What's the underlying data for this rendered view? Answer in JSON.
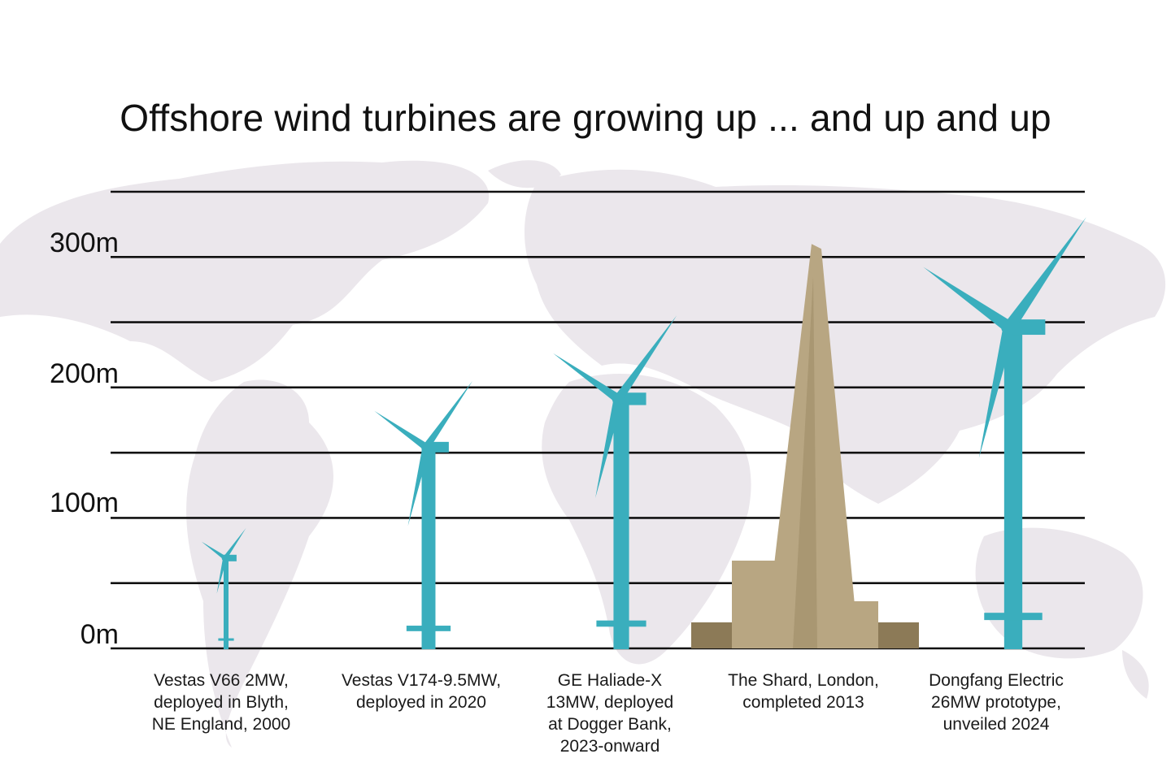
{
  "colors": {
    "turbine": "#3aaebd",
    "shard": "#b8a682",
    "shard_dark": "#8c7a57",
    "map": "#ebe7ec",
    "grid": "#111111"
  },
  "chart_data": {
    "type": "bar",
    "title": "Offshore wind turbines are growing up ... and up and up",
    "xlabel": "",
    "ylabel": "",
    "ylim": [
      0,
      350
    ],
    "yticks": [
      0,
      100,
      200,
      300
    ],
    "ytick_labels": [
      "0m",
      "100m",
      "200m",
      "300m"
    ],
    "gridlines": [
      0,
      50,
      100,
      150,
      200,
      250,
      300,
      350
    ],
    "items": [
      {
        "kind": "turbine",
        "caption": "Vestas V66 2MW,\ndeployed in Blyth,\nNE England, 2000",
        "hub_height": 68,
        "tip_height": 96
      },
      {
        "kind": "turbine",
        "caption": "Vestas V174-9.5MW,\ndeployed in 2020",
        "hub_height": 153,
        "tip_height": 215
      },
      {
        "kind": "turbine",
        "caption": "GE Haliade-X\n13MW, deployed\nat Dogger Bank,\n2023-onward",
        "hub_height": 190,
        "tip_height": 268
      },
      {
        "kind": "building",
        "caption": "The Shard, London,\ncompleted 2013",
        "height": 310
      },
      {
        "kind": "turbine",
        "caption": "Dongfang Electric\n26MW prototype,\nunveiled 2024",
        "hub_height": 245,
        "tip_height": 348
      }
    ]
  }
}
